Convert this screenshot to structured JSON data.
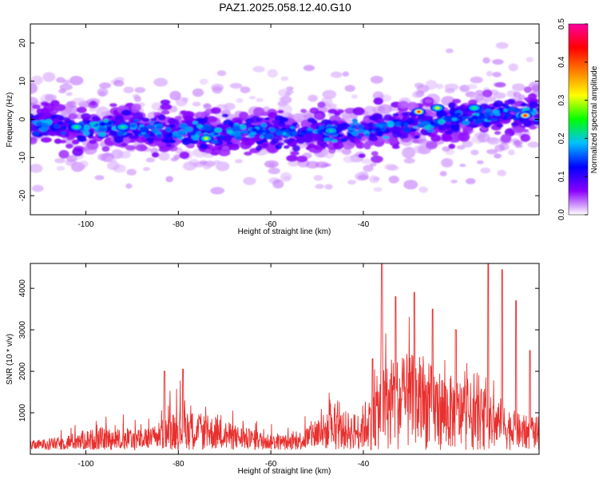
{
  "title": "PAZ1.2025.058.12.40.G10",
  "chart_data": [
    {
      "type": "heatmap",
      "xlabel": "Height of straight line (km)",
      "ylabel": "Frequency (Hz)",
      "xlim": [
        -112,
        -2
      ],
      "ylim": [
        -25,
        25
      ],
      "xticks": [
        -100,
        -80,
        -60,
        -40
      ],
      "xtick_labels": [
        "-100",
        "-80",
        "-60",
        "-40"
      ],
      "yticks": [
        -20,
        -10,
        0,
        10,
        20
      ],
      "ytick_labels": [
        "-20",
        "-10",
        "0",
        "10",
        "20"
      ],
      "colorbar": {
        "label": "Normalized spectral amplitude",
        "range": [
          0,
          0.5
        ],
        "ticks": [
          0,
          0.1,
          0.2,
          0.3,
          0.4,
          0.5
        ],
        "tick_labels": [
          "0.0",
          "0.1",
          "0.2",
          "0.3",
          "0.4",
          "0.5"
        ],
        "colors": [
          "#ffffff",
          "#8b00ff",
          "#0000ff",
          "#00c0ff",
          "#00ff00",
          "#ffff00",
          "#ff8000",
          "#ff0000",
          "#ff00a0"
        ]
      },
      "band_center_hz": {
        "x": [
          -110,
          -100,
          -90,
          -80,
          -70,
          -60,
          -50,
          -40,
          -30,
          -20,
          -10,
          -3
        ],
        "y": [
          -1.5,
          -2,
          -2,
          -3,
          -3.5,
          -3,
          -3.5,
          -2.5,
          -1.5,
          0,
          1.5,
          1.5
        ]
      },
      "peaks": [
        {
          "x": -102,
          "y": -2,
          "value": 0.25
        },
        {
          "x": -92,
          "y": -2,
          "value": 0.24
        },
        {
          "x": -74,
          "y": -5,
          "value": 0.3
        },
        {
          "x": -47,
          "y": -3,
          "value": 0.22
        },
        {
          "x": -28,
          "y": 2,
          "value": 0.42
        },
        {
          "x": -24,
          "y": 3,
          "value": 0.3
        },
        {
          "x": -16,
          "y": 3,
          "value": 0.25
        },
        {
          "x": -5,
          "y": 1,
          "value": 0.44
        }
      ]
    },
    {
      "type": "line",
      "xlabel": "Height of straight line (km)",
      "ylabel": "SNR (10 * v/v)",
      "xlim": [
        -112,
        -2
      ],
      "ylim": [
        0,
        4600
      ],
      "xticks": [
        -100,
        -80,
        -60,
        -40
      ],
      "xtick_labels": [
        "-100",
        "-80",
        "-60",
        "-40"
      ],
      "yticks": [
        1000,
        2000,
        3000,
        4000
      ],
      "ytick_labels": [
        "1000",
        "2000",
        "3000",
        "4000"
      ],
      "color": "#e8302e",
      "envelope": {
        "x": [
          -112,
          -106,
          -100,
          -95,
          -90,
          -86,
          -82,
          -79,
          -76,
          -72,
          -68,
          -64,
          -60,
          -56,
          -53,
          -50,
          -47,
          -44,
          -41,
          -39,
          -37,
          -35,
          -33,
          -30,
          -27,
          -24,
          -21,
          -18,
          -15,
          -12,
          -9,
          -6,
          -3
        ],
        "y": [
          250,
          350,
          550,
          600,
          550,
          600,
          950,
          1150,
          1000,
          900,
          700,
          550,
          450,
          400,
          550,
          950,
          1000,
          1050,
          1000,
          1500,
          2000,
          2300,
          2500,
          2600,
          2400,
          2200,
          2000,
          1900,
          1700,
          1400,
          1200,
          950,
          900
        ]
      },
      "spikes": [
        {
          "x": -83,
          "y": 2000
        },
        {
          "x": -79,
          "y": 2050
        },
        {
          "x": -38,
          "y": 2300
        },
        {
          "x": -36,
          "y": 4600
        },
        {
          "x": -33,
          "y": 3800
        },
        {
          "x": -29,
          "y": 3900
        },
        {
          "x": -25,
          "y": 3500
        },
        {
          "x": -20,
          "y": 3000
        },
        {
          "x": -13,
          "y": 4600
        },
        {
          "x": -10,
          "y": 4450
        },
        {
          "x": -7,
          "y": 3700
        },
        {
          "x": -4,
          "y": 2500
        }
      ]
    }
  ]
}
